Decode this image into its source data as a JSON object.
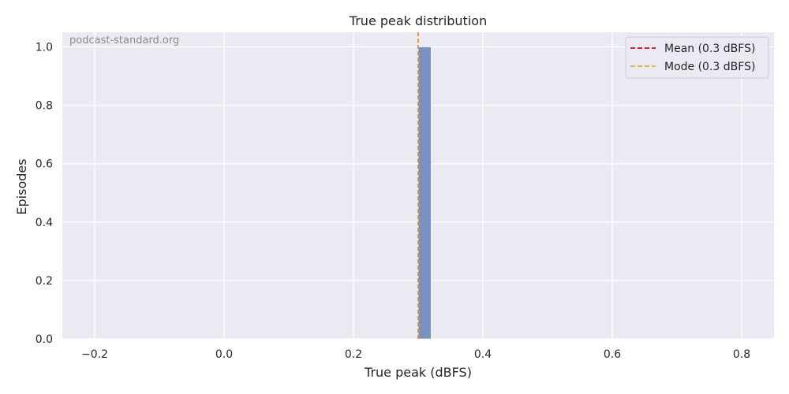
{
  "chart_data": {
    "type": "bar",
    "title": "True peak distribution",
    "xlabel": "True peak (dBFS)",
    "ylabel": "Episodes",
    "watermark": "podcast-standard.org",
    "xlim": [
      -0.25,
      0.85
    ],
    "ylim": [
      0,
      1.05
    ],
    "xticks": [
      -0.2,
      0.0,
      0.2,
      0.4,
      0.6,
      0.8
    ],
    "xtick_labels": [
      "−0.2",
      "0.0",
      "0.2",
      "0.4",
      "0.6",
      "0.8"
    ],
    "yticks": [
      0.0,
      0.2,
      0.4,
      0.6,
      0.8,
      1.0
    ],
    "ytick_labels": [
      "0.0",
      "0.2",
      "0.4",
      "0.6",
      "0.8",
      "1.0"
    ],
    "bins": [
      {
        "x0": 0.3,
        "x1": 0.32,
        "count": 1
      }
    ],
    "reference_lines": [
      {
        "label": "Mean (0.3 dBFS)",
        "x": 0.3,
        "color": "#e8000b",
        "style": "dashed"
      },
      {
        "label": "Mode (0.3 dBFS)",
        "x": 0.3,
        "color": "#f5a623",
        "style": "dashed"
      }
    ],
    "bar_color": "#7892c2",
    "background_color": "#eaeaf2",
    "grid": true,
    "legend_position": "top-right"
  }
}
